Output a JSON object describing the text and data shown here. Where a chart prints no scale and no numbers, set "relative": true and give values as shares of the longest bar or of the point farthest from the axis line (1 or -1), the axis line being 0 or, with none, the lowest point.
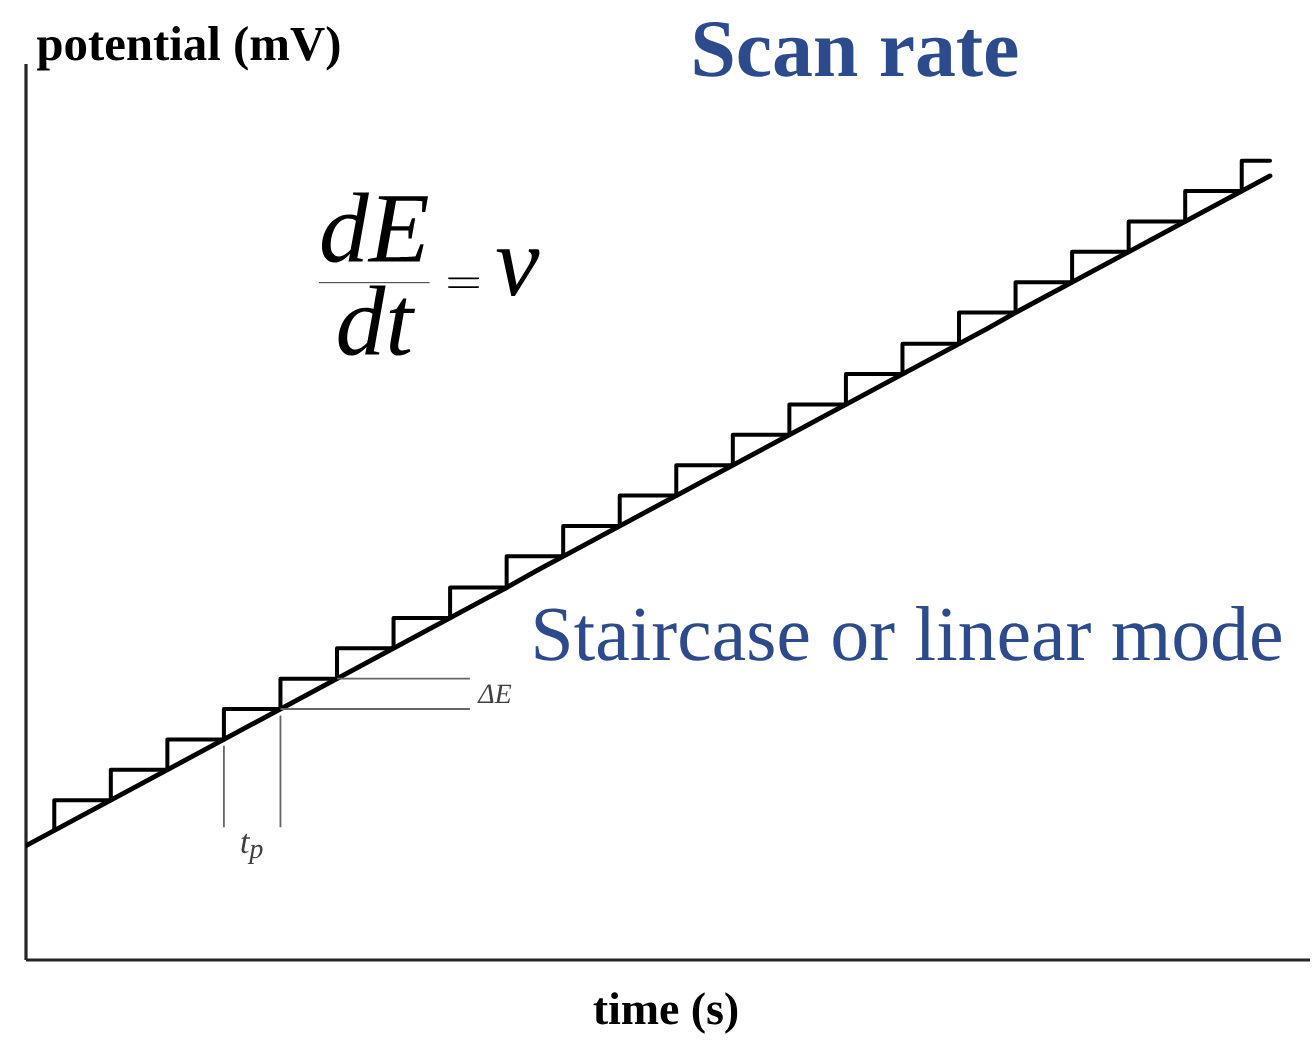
{
  "chart_data": {
    "type": "line",
    "title": "Scan rate",
    "xlabel": "time (s)",
    "ylabel": "potential (mV)",
    "relative": true,
    "categories": [
      null,
      null,
      null,
      null,
      null,
      null,
      null,
      null,
      null,
      null,
      null,
      null,
      null,
      null,
      null,
      null,
      null,
      null,
      null,
      null,
      null,
      null,
      null,
      null,
      null,
      null,
      null,
      null,
      null,
      null,
      null,
      null,
      null,
      null,
      null,
      null,
      null,
      null,
      null,
      null,
      null,
      null,
      null,
      null,
      null
    ],
    "series": [
      {
        "type": "step",
        "color": "#000000",
        "values": [
          null,
          0.162,
          0.2,
          0.2,
          0.238,
          0.238,
          0.276,
          0.276,
          0.314,
          0.314,
          0.352,
          0.352,
          0.39,
          0.39,
          0.428,
          0.428,
          0.466,
          0.466,
          0.505,
          0.505,
          0.543,
          0.543,
          0.581,
          0.581,
          0.619,
          0.619,
          0.657,
          0.657,
          0.695,
          0.695,
          0.733,
          0.733,
          0.771,
          0.771,
          0.81,
          0.81,
          0.848,
          0.848,
          0.886,
          0.886,
          0.924,
          0.924,
          0.962,
          0.962,
          1.0
        ]
      },
      {
        "color": "#000000",
        "values": [
          0.143,
          0.162,
          0.181,
          0.2,
          0.219,
          0.238,
          0.257,
          0.276,
          0.295,
          0.314,
          0.333,
          0.352,
          0.371,
          0.39,
          0.409,
          0.428,
          0.447,
          0.466,
          0.486,
          0.505,
          0.524,
          0.543,
          0.562,
          0.581,
          0.6,
          0.619,
          0.638,
          0.657,
          0.676,
          0.695,
          0.714,
          0.733,
          0.752,
          0.771,
          0.79,
          0.81,
          0.829,
          0.848,
          0.867,
          0.886,
          0.905,
          0.924,
          0.943,
          0.962,
          0.981
        ]
      }
    ],
    "annotations": [
      "\\frac{dE}{dt} = v",
      "Staircase or linear mode",
      "ΔE",
      "t$_{p}$"
    ]
  }
}
